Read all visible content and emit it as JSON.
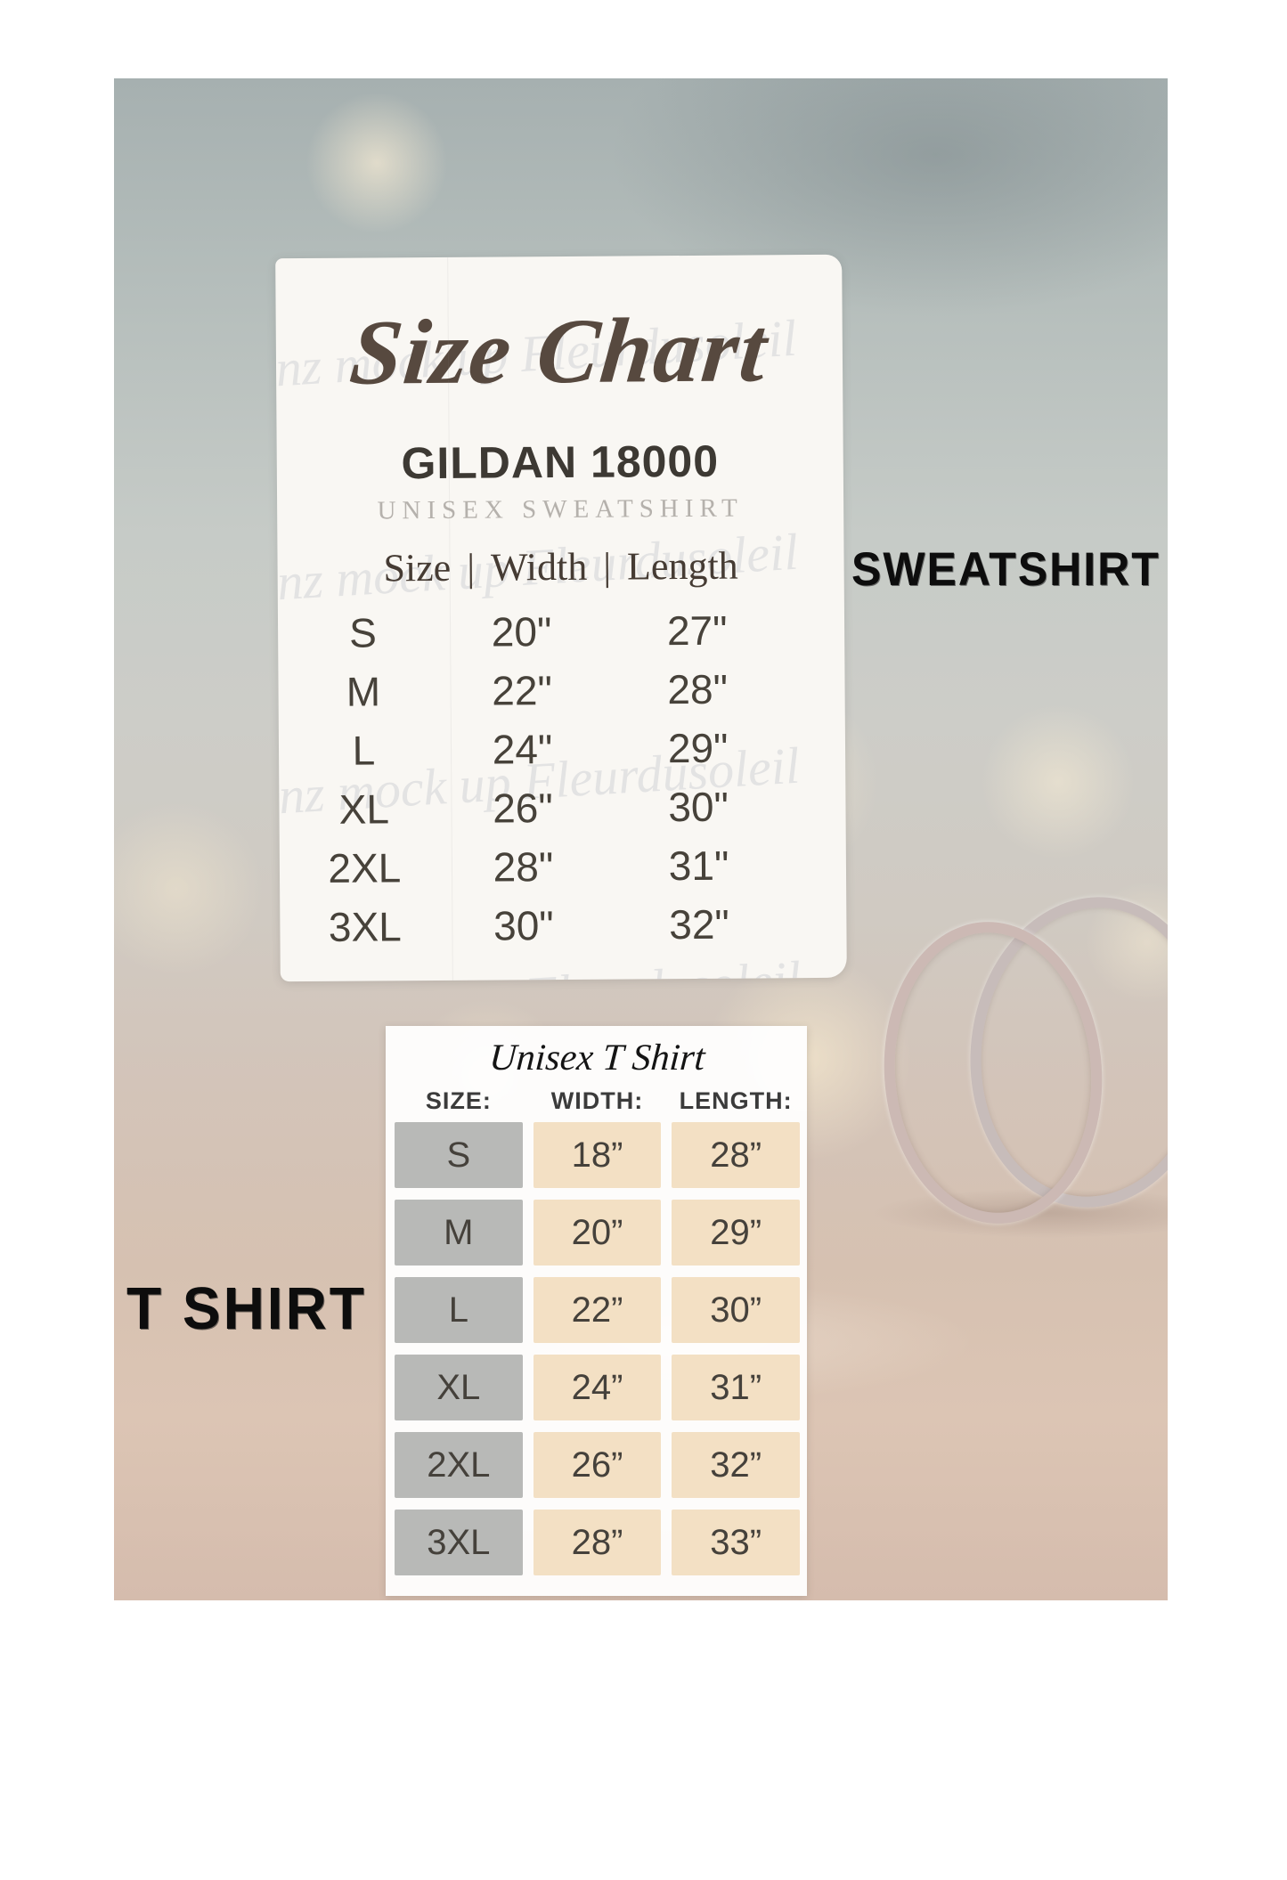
{
  "labels": {
    "sweatshirt": "SWEATSHIRT",
    "tshirt": "T SHIRT"
  },
  "sweatshirt_card": {
    "title": "Size Chart",
    "brand": "GILDAN 18000",
    "subtitle": "UNISEX SWEATSHIRT",
    "separator": "|",
    "watermark": "gnz mock up Fleurdusoleil"
  },
  "tshirt_card": {
    "title": "Unisex T Shirt"
  },
  "colors": {
    "stamp_text": "#0d0d0d",
    "card_background": "#f9f7f3",
    "size_cell_gray": "#b8b9b7",
    "measure_cell_beige": "#f3e0c4",
    "script_brown": "#57493f",
    "photo_top_gray": "#a6b0b0",
    "photo_bottom_pink": "#d5bcad"
  },
  "chart_data": [
    {
      "type": "table",
      "title": "GILDAN 18000 UNISEX SWEATSHIRT",
      "columns": [
        "Size",
        "Width",
        "Length"
      ],
      "rows": [
        [
          "S",
          "20\"",
          "27\""
        ],
        [
          "M",
          "22\"",
          "28\""
        ],
        [
          "L",
          "24\"",
          "29\""
        ],
        [
          "XL",
          "26\"",
          "30\""
        ],
        [
          "2XL",
          "28\"",
          "31\""
        ],
        [
          "3XL",
          "30\"",
          "32\""
        ]
      ]
    },
    {
      "type": "table",
      "title": "Unisex T Shirt",
      "columns": [
        "SIZE:",
        "WIDTH:",
        "LENGTH:"
      ],
      "rows": [
        [
          "S",
          "18”",
          "28”"
        ],
        [
          "M",
          "20”",
          "29”"
        ],
        [
          "L",
          "22”",
          "30”"
        ],
        [
          "XL",
          "24”",
          "31”"
        ],
        [
          "2XL",
          "26”",
          "32”"
        ],
        [
          "3XL",
          "28”",
          "33”"
        ]
      ]
    }
  ]
}
